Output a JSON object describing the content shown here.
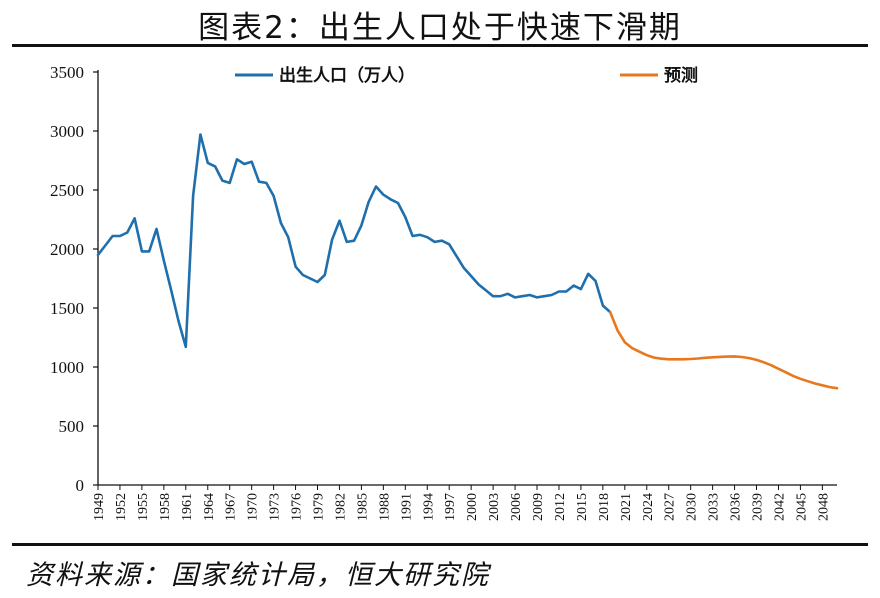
{
  "title": "图表2：出生人口处于快速下滑期",
  "source": "资料来源：国家统计局，恒大研究院",
  "colors": {
    "actual": "#1f6fad",
    "forecast": "#e8781e",
    "axis": "#111111"
  },
  "chart_data": {
    "type": "line",
    "ylim": [
      0,
      3500
    ],
    "yticks": [
      0,
      500,
      1000,
      1500,
      2000,
      2500,
      3000,
      3500
    ],
    "xlim": [
      1949,
      2050
    ],
    "xticks": [
      1949,
      1952,
      1955,
      1958,
      1961,
      1964,
      1967,
      1970,
      1973,
      1976,
      1979,
      1982,
      1985,
      1988,
      1991,
      1994,
      1997,
      2000,
      2003,
      2006,
      2009,
      2012,
      2015,
      2018,
      2021,
      2024,
      2027,
      2030,
      2033,
      2036,
      2039,
      2042,
      2045,
      2048
    ],
    "legend": "top",
    "grid": false,
    "series": [
      {
        "name": "出生人口（万人）",
        "x": [
          1949,
          1950,
          1951,
          1952,
          1953,
          1954,
          1955,
          1956,
          1957,
          1958,
          1959,
          1960,
          1961,
          1962,
          1963,
          1964,
          1965,
          1966,
          1967,
          1968,
          1969,
          1970,
          1971,
          1972,
          1973,
          1974,
          1975,
          1976,
          1977,
          1978,
          1979,
          1980,
          1981,
          1982,
          1983,
          1984,
          1985,
          1986,
          1987,
          1988,
          1989,
          1990,
          1991,
          1992,
          1993,
          1994,
          1995,
          1996,
          1997,
          1998,
          1999,
          2000,
          2001,
          2002,
          2003,
          2004,
          2005,
          2006,
          2007,
          2008,
          2009,
          2010,
          2011,
          2012,
          2013,
          2014,
          2015,
          2016,
          2017,
          2018,
          2019
        ],
        "values": [
          1950,
          2030,
          2110,
          2110,
          2140,
          2260,
          1980,
          1980,
          2170,
          1900,
          1650,
          1390,
          1170,
          2450,
          2970,
          2730,
          2700,
          2580,
          2560,
          2760,
          2720,
          2740,
          2570,
          2560,
          2450,
          2220,
          2100,
          1850,
          1780,
          1750,
          1720,
          1780,
          2080,
          2240,
          2060,
          2070,
          2200,
          2400,
          2530,
          2460,
          2420,
          2390,
          2270,
          2110,
          2120,
          2100,
          2060,
          2070,
          2040,
          1940,
          1840,
          1770,
          1700,
          1650,
          1600,
          1600,
          1620,
          1590,
          1600,
          1610,
          1590,
          1600,
          1610,
          1640,
          1640,
          1690,
          1660,
          1790,
          1730,
          1520,
          1465
        ]
      },
      {
        "name": "预测",
        "x": [
          2019,
          2020,
          2021,
          2022,
          2023,
          2024,
          2025,
          2026,
          2027,
          2028,
          2029,
          2030,
          2031,
          2032,
          2033,
          2034,
          2035,
          2036,
          2037,
          2038,
          2039,
          2040,
          2041,
          2042,
          2043,
          2044,
          2045,
          2046,
          2047,
          2048,
          2049,
          2050
        ],
        "values": [
          1465,
          1310,
          1210,
          1160,
          1130,
          1100,
          1080,
          1070,
          1065,
          1065,
          1065,
          1068,
          1072,
          1078,
          1082,
          1086,
          1088,
          1090,
          1085,
          1075,
          1060,
          1040,
          1015,
          985,
          955,
          925,
          900,
          880,
          860,
          845,
          830,
          820
        ]
      }
    ]
  }
}
